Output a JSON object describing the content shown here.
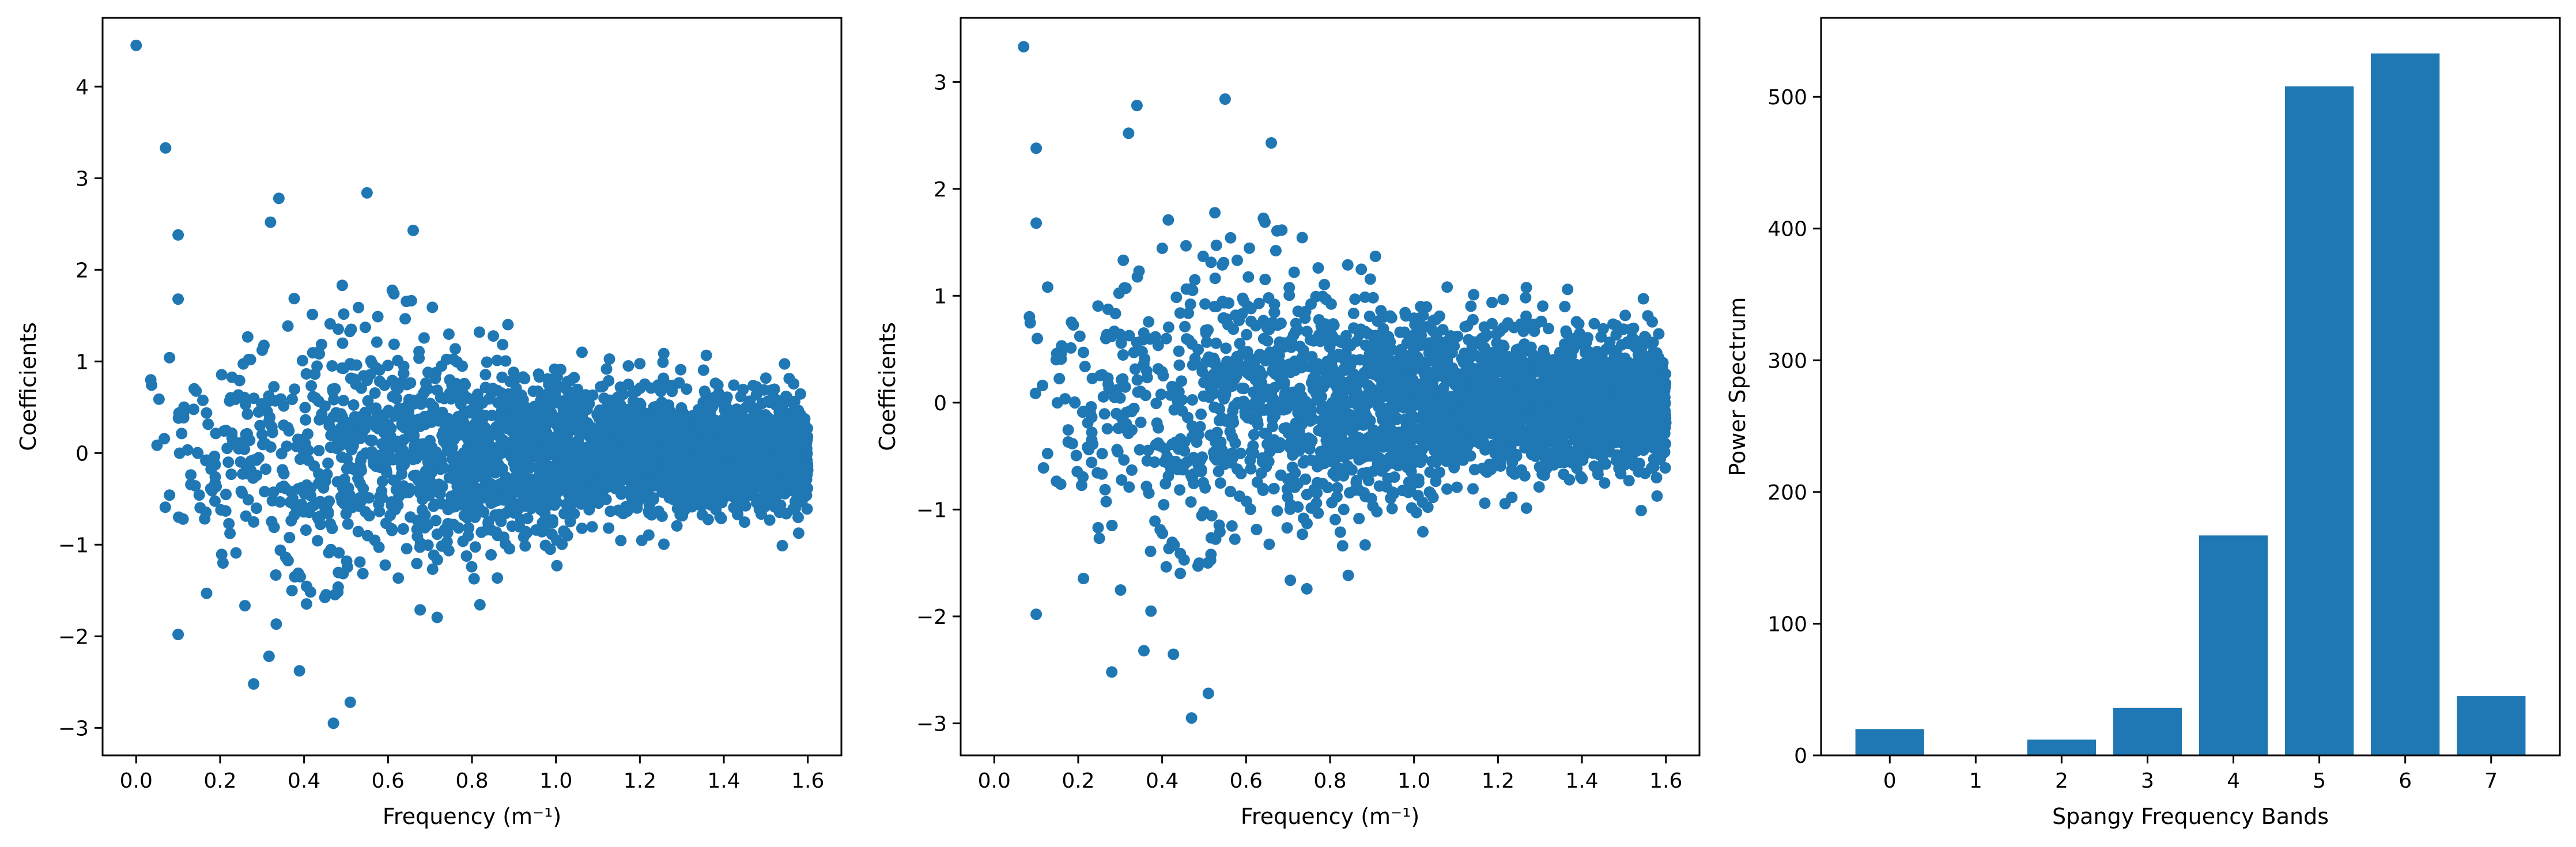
{
  "chart_data": [
    {
      "type": "scatter",
      "xlabel": "Frequency (m⁻¹)",
      "ylabel": "Coefficients",
      "xlim": [
        -0.08,
        1.68
      ],
      "ylim": [
        -3.3,
        4.75
      ],
      "xticks": [
        "0.0",
        "0.2",
        "0.4",
        "0.6",
        "0.8",
        "1.0",
        "1.2",
        "1.4",
        "1.6"
      ],
      "yticks": [
        "−3",
        "−2",
        "−1",
        "0",
        "1",
        "2",
        "3",
        "4"
      ],
      "color": "#1f77b4",
      "notable_points": [
        {
          "x": 0.0,
          "y": 4.45
        },
        {
          "x": 0.07,
          "y": 3.33
        },
        {
          "x": 0.1,
          "y": 2.38
        },
        {
          "x": 0.1,
          "y": 1.68
        },
        {
          "x": 0.1,
          "y": -1.98
        },
        {
          "x": 0.34,
          "y": 2.78
        },
        {
          "x": 0.32,
          "y": 2.52
        },
        {
          "x": 0.55,
          "y": 2.84
        },
        {
          "x": 0.47,
          "y": -2.95
        },
        {
          "x": 0.51,
          "y": -2.72
        },
        {
          "x": 0.28,
          "y": -2.52
        },
        {
          "x": 0.66,
          "y": 2.43
        }
      ],
      "envelope": {
        "x": [
          0.0,
          0.2,
          0.4,
          0.6,
          0.8,
          1.0,
          1.2,
          1.4,
          1.6
        ],
        "spread": [
          1.0,
          1.5,
          1.9,
          1.6,
          1.3,
          1.05,
          0.85,
          0.72,
          0.65
        ]
      },
      "x_range": [
        0.0,
        1.6
      ],
      "approx_point_count": 3000
    },
    {
      "type": "scatter",
      "xlabel": "Frequency (m⁻¹)",
      "ylabel": "Coefficients",
      "xlim": [
        -0.08,
        1.68
      ],
      "ylim": [
        -3.3,
        3.6
      ],
      "xticks": [
        "0.0",
        "0.2",
        "0.4",
        "0.6",
        "0.8",
        "1.0",
        "1.2",
        "1.4",
        "1.6"
      ],
      "yticks": [
        "−3",
        "−2",
        "−1",
        "0",
        "1",
        "2",
        "3"
      ],
      "color": "#1f77b4",
      "notable_points": [
        {
          "x": 0.07,
          "y": 3.33
        },
        {
          "x": 0.1,
          "y": 2.38
        },
        {
          "x": 0.1,
          "y": 1.68
        },
        {
          "x": 0.1,
          "y": -1.98
        },
        {
          "x": 0.34,
          "y": 2.78
        },
        {
          "x": 0.32,
          "y": 2.52
        },
        {
          "x": 0.55,
          "y": 2.84
        },
        {
          "x": 0.47,
          "y": -2.95
        },
        {
          "x": 0.51,
          "y": -2.72
        },
        {
          "x": 0.28,
          "y": -2.52
        },
        {
          "x": 0.66,
          "y": 2.43
        }
      ],
      "envelope": {
        "x": [
          0.0,
          0.2,
          0.4,
          0.6,
          0.8,
          1.0,
          1.2,
          1.4,
          1.6
        ],
        "spread": [
          0.8,
          1.5,
          1.9,
          1.6,
          1.3,
          1.05,
          0.85,
          0.72,
          0.65
        ]
      },
      "x_range": [
        0.05,
        1.6
      ],
      "approx_point_count": 3000
    },
    {
      "type": "bar",
      "xlabel": "Spangy Frequency Bands",
      "ylabel": "Power Spectrum",
      "categories": [
        "0",
        "1",
        "2",
        "3",
        "4",
        "5",
        "6",
        "7"
      ],
      "values": [
        20,
        0,
        12,
        36,
        167,
        508,
        533,
        45
      ],
      "ylim": [
        0,
        560
      ],
      "yticks": [
        "0",
        "100",
        "200",
        "300",
        "400",
        "500"
      ],
      "color": "#1f77b4"
    }
  ]
}
